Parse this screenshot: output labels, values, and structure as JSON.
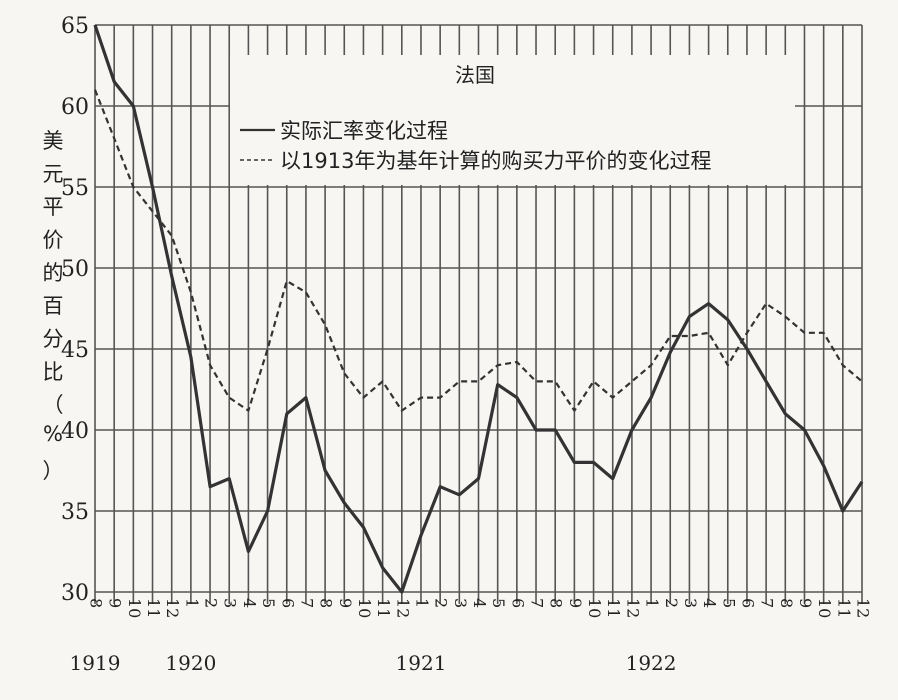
{
  "chart_data": {
    "type": "line",
    "title": "法国",
    "ylabel": "美元平价的百分比（%）",
    "ylabel_chars": [
      "美",
      "元",
      "平",
      "价",
      "的",
      "百",
      "分",
      "比",
      "（",
      "%",
      "）"
    ],
    "xlabel": "",
    "ylim": [
      30,
      65
    ],
    "yticks": [
      30,
      35,
      40,
      45,
      50,
      55,
      60,
      65
    ],
    "month_labels": [
      "8",
      "9",
      "10",
      "11",
      "12",
      "1",
      "2",
      "3",
      "4",
      "5",
      "6",
      "7",
      "8",
      "9",
      "10",
      "11",
      "12",
      "1",
      "2",
      "3",
      "4",
      "5",
      "6",
      "7",
      "8",
      "9",
      "10",
      "11",
      "12",
      "1",
      "2",
      "3",
      "4",
      "5",
      "6",
      "7",
      "8",
      "9",
      "10",
      "11",
      "12"
    ],
    "year_labels": [
      {
        "label": "1919",
        "index": 0
      },
      {
        "label": "1920",
        "index": 5
      },
      {
        "label": "1921",
        "index": 17
      },
      {
        "label": "1922",
        "index": 29
      }
    ],
    "grid": true,
    "legend_position": "top-center",
    "series": [
      {
        "name": "实际汇率变化过程",
        "style": "solid",
        "color": "#333333",
        "values": [
          65.0,
          61.5,
          60.0,
          55.0,
          49.5,
          44.5,
          36.5,
          37.0,
          32.5,
          35.0,
          41.0,
          42.0,
          37.5,
          35.5,
          34.0,
          31.5,
          30.0,
          33.5,
          36.5,
          36.0,
          37.0,
          42.8,
          42.0,
          40.0,
          40.0,
          38.0,
          38.0,
          37.0,
          40.0,
          42.0,
          44.8,
          47.0,
          47.8,
          46.8,
          45.0,
          43.0,
          41.0,
          40.0,
          37.8,
          35.0,
          36.8
        ]
      },
      {
        "name": "以1913年为基年计算的购买力平价的变化过程",
        "style": "dashed",
        "color": "#333333",
        "values": [
          61.0,
          58.0,
          55.0,
          53.5,
          52.0,
          48.5,
          44.0,
          42.0,
          41.2,
          45.0,
          49.2,
          48.5,
          46.5,
          43.5,
          42.0,
          43.0,
          41.2,
          42.0,
          42.0,
          43.0,
          43.0,
          44.0,
          44.2,
          43.0,
          43.0,
          41.2,
          43.0,
          42.0,
          43.0,
          44.0,
          45.8,
          45.8,
          46.0,
          44.0,
          46.0,
          47.8,
          47.0,
          46.0,
          46.0,
          44.0,
          43.0
        ]
      }
    ]
  }
}
